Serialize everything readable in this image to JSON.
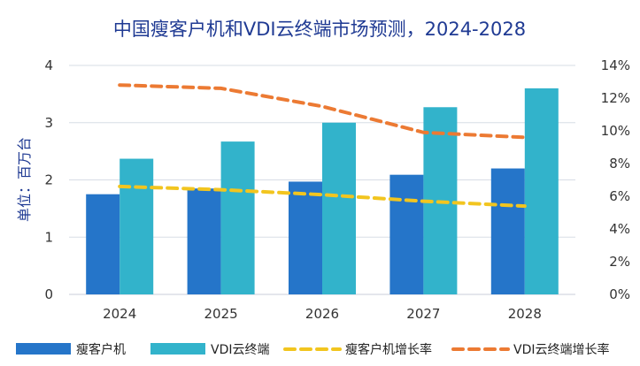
{
  "chart_data": {
    "type": "bar",
    "title": "中国瘦客户机和VDI云终端市场预测，2024-2028",
    "ylabel": "单位：百万台",
    "categories": [
      "2024",
      "2025",
      "2026",
      "2027",
      "2028"
    ],
    "ylim": [
      0,
      4
    ],
    "y_ticks": [
      "0",
      "1",
      "2",
      "3",
      "4"
    ],
    "y2lim": [
      0,
      14
    ],
    "y2_ticks": [
      "0%",
      "2%",
      "4%",
      "6%",
      "8%",
      "10%",
      "12%",
      "14%"
    ],
    "grid": true,
    "legend_position": "bottom",
    "series": [
      {
        "name": "瘦客户机",
        "kind": "bar",
        "axis": "left",
        "color": "#2575c9",
        "values": [
          1.75,
          1.85,
          1.97,
          2.09,
          2.2
        ]
      },
      {
        "name": "VDI云终端",
        "kind": "bar",
        "axis": "left",
        "color": "#32b3cb",
        "values": [
          2.37,
          2.67,
          3.0,
          3.27,
          3.6
        ]
      },
      {
        "name": "瘦客户机增长率",
        "kind": "line",
        "axis": "right",
        "color": "#f2c51f",
        "dashed": true,
        "values": [
          6.6,
          6.4,
          6.1,
          5.7,
          5.4
        ]
      },
      {
        "name": "VDI云终端增长率",
        "kind": "line",
        "axis": "right",
        "color": "#ec7a33",
        "dashed": true,
        "values": [
          12.8,
          12.6,
          11.5,
          9.9,
          9.6
        ]
      }
    ]
  }
}
